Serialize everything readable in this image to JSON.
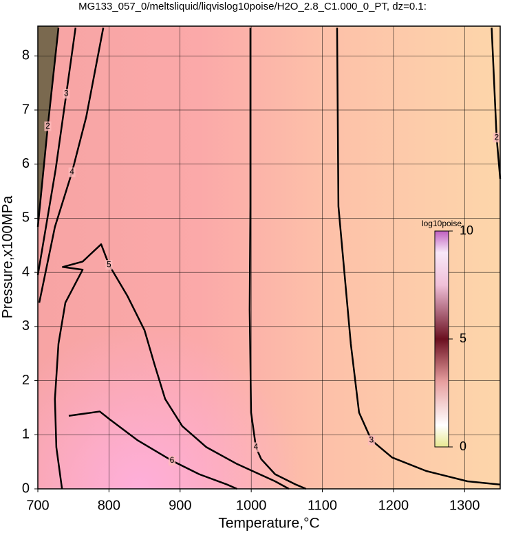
{
  "chart_data": {
    "type": "contour",
    "title": "MG133_057_0/meltsliquid/liqvislog10poise/H2O_2.8_C1.000_0_PT, dz=0.1:",
    "xlabel": "Temperature,°C",
    "ylabel": "Pressure,x100MPa",
    "xlim": [
      700,
      1350
    ],
    "ylim": [
      0,
      8.55
    ],
    "xticks": [
      700,
      800,
      900,
      1000,
      1100,
      1200,
      1300
    ],
    "yticks": [
      0,
      1,
      2,
      3,
      4,
      5,
      6,
      7,
      8
    ],
    "grid": true,
    "colorbar": {
      "label": "log10poise",
      "lim": [
        0,
        10
      ],
      "ticks": [
        0,
        5,
        10
      ]
    },
    "contours": [
      {
        "level": 2,
        "x": [
          700,
          714,
          729
        ],
        "y": [
          4.84,
          6.7,
          8.52
        ]
      },
      {
        "level": 3,
        "x": [
          700,
          725,
          740,
          753
        ],
        "y": [
          3.95,
          5.9,
          7.3,
          8.52
        ]
      },
      {
        "level": 4,
        "x": [
          702,
          724,
          748,
          768,
          792
        ],
        "y": [
          3.44,
          4.84,
          5.85,
          6.87,
          8.52
        ]
      },
      {
        "level": 5,
        "x": [
          734,
          726,
          724,
          729,
          738.7,
          763,
          735,
          763,
          789,
          800,
          825.7,
          850,
          864,
          879,
          903,
          937,
          980,
          1033.6,
          1053
        ],
        "y": [
          0,
          0.77,
          1.66,
          2.68,
          3.44,
          4.05,
          4.1,
          4.2,
          4.52,
          4.14,
          3.57,
          2.93,
          2.3,
          1.66,
          1.16,
          0.77,
          0.46,
          0.14,
          0
        ]
      },
      {
        "level": 6,
        "x": [
          743.5,
          787,
          801.5,
          840,
          888.6,
          927,
          966,
          980
        ],
        "y": [
          1.35,
          1.43,
          1.28,
          0.9,
          0.52,
          0.27,
          0.08,
          0
        ]
      },
      {
        "level": 4,
        "x": [
          998.8,
          998.8,
          997.8,
          999.8,
          1006.6,
          1014,
          1033.6,
          1062.7,
          1077
        ],
        "y": [
          8.52,
          5.22,
          3.31,
          1.41,
          0.77,
          0.55,
          0.27,
          0.08,
          0
        ]
      },
      {
        "level": 3,
        "x": [
          1120.7,
          1122.6,
          1140,
          1151.6,
          1169,
          1198,
          1246,
          1304,
          1350
        ],
        "y": [
          8.52,
          5.22,
          2.68,
          1.41,
          0.9,
          0.58,
          0.33,
          0.14,
          0.08
        ]
      },
      {
        "level": 2,
        "x": [
          1338,
          1345,
          1350
        ],
        "y": [
          8.52,
          6.49,
          5.73
        ]
      }
    ]
  }
}
